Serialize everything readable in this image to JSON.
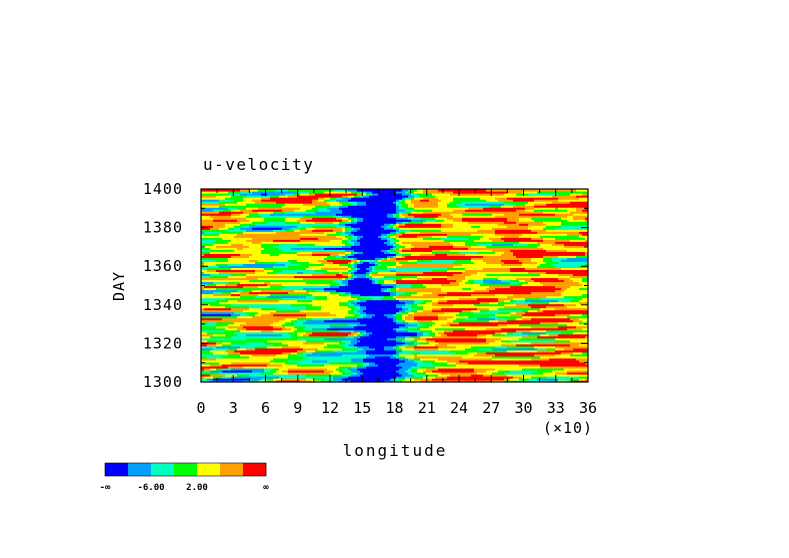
{
  "chart_data": {
    "type": "heatmap",
    "title": "u-velocity",
    "xlabel": "longitude",
    "ylabel": "DAY",
    "x_multiplier_label": "(×10)",
    "xlim": [
      0,
      36
    ],
    "ylim": [
      1300,
      1400
    ],
    "x_ticks": [
      "0",
      "3",
      "6",
      "9",
      "12",
      "15",
      "18",
      "21",
      "24",
      "27",
      "30",
      "33",
      "36"
    ],
    "y_ticks": [
      "1300",
      "1320",
      "1340",
      "1360",
      "1380",
      "1400"
    ],
    "colorbar": {
      "colors": [
        "#0000ff",
        "#00a0ff",
        "#00ffc0",
        "#00ff00",
        "#ffff00",
        "#ffa000",
        "#ff0000"
      ],
      "labels": [
        "-∞",
        "-6.00",
        "2.00",
        "∞"
      ]
    },
    "field_notes": "Westward (negative) jet band centered near longitude 16 (×10), narrowing between days 1340 and 1380; mixed positive/negative filaments elsewhere."
  }
}
